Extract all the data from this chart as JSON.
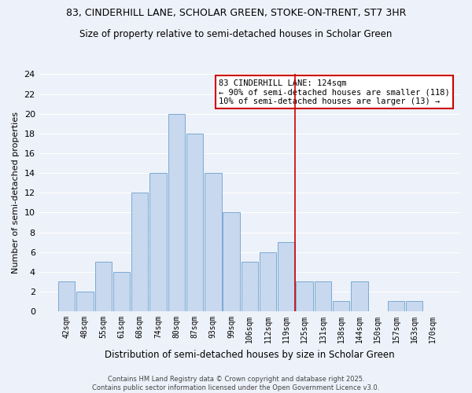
{
  "title1": "83, CINDERHILL LANE, SCHOLAR GREEN, STOKE-ON-TRENT, ST7 3HR",
  "title2": "Size of property relative to semi-detached houses in Scholar Green",
  "xlabel": "Distribution of semi-detached houses by size in Scholar Green",
  "ylabel": "Number of semi-detached properties",
  "bar_labels": [
    "42sqm",
    "48sqm",
    "55sqm",
    "61sqm",
    "68sqm",
    "74sqm",
    "80sqm",
    "87sqm",
    "93sqm",
    "99sqm",
    "106sqm",
    "112sqm",
    "119sqm",
    "125sqm",
    "131sqm",
    "138sqm",
    "144sqm",
    "150sqm",
    "157sqm",
    "163sqm",
    "170sqm"
  ],
  "bar_values": [
    3,
    2,
    5,
    4,
    12,
    14,
    20,
    18,
    14,
    10,
    5,
    6,
    7,
    3,
    3,
    1,
    3,
    0,
    1,
    1,
    0
  ],
  "bar_color": "#c8d8ee",
  "bar_edge_color": "#7aaad4",
  "vline_color": "#cc0000",
  "ylim": [
    0,
    24
  ],
  "yticks": [
    0,
    2,
    4,
    6,
    8,
    10,
    12,
    14,
    16,
    18,
    20,
    22,
    24
  ],
  "annotation_title": "83 CINDERHILL LANE: 124sqm",
  "annotation_line1": "← 90% of semi-detached houses are smaller (118)",
  "annotation_line2": "10% of semi-detached houses are larger (13) →",
  "annotation_box_color": "#ffffff",
  "annotation_border_color": "#cc0000",
  "footer1": "Contains HM Land Registry data © Crown copyright and database right 2025.",
  "footer2": "Contains public sector information licensed under the Open Government Licence v3.0.",
  "background_color": "#edf1f9",
  "grid_color": "#ffffff",
  "vline_bar_index": 13
}
